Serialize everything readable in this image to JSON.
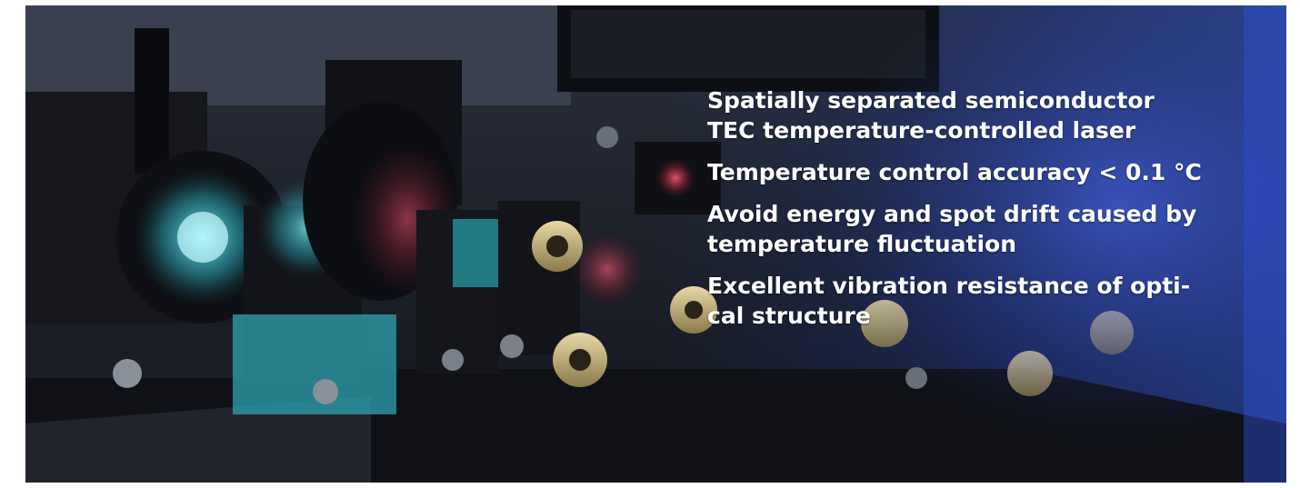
{
  "banner": {
    "features": [
      {
        "line1": "Spatially separated semiconductor",
        "line2": "TEC temperature-controlled laser"
      },
      {
        "line1": "Temperature control accuracy < 0.1 °C",
        "line2": ""
      },
      {
        "line1": "Avoid energy and spot drift caused by",
        "line2": "temperature fluctuation"
      },
      {
        "line1": "Excellent vibration resistance of opti-",
        "line2": "cal structure"
      }
    ],
    "colors": {
      "text": "#ffffff",
      "accent_glow": "#2b4bd6"
    }
  }
}
